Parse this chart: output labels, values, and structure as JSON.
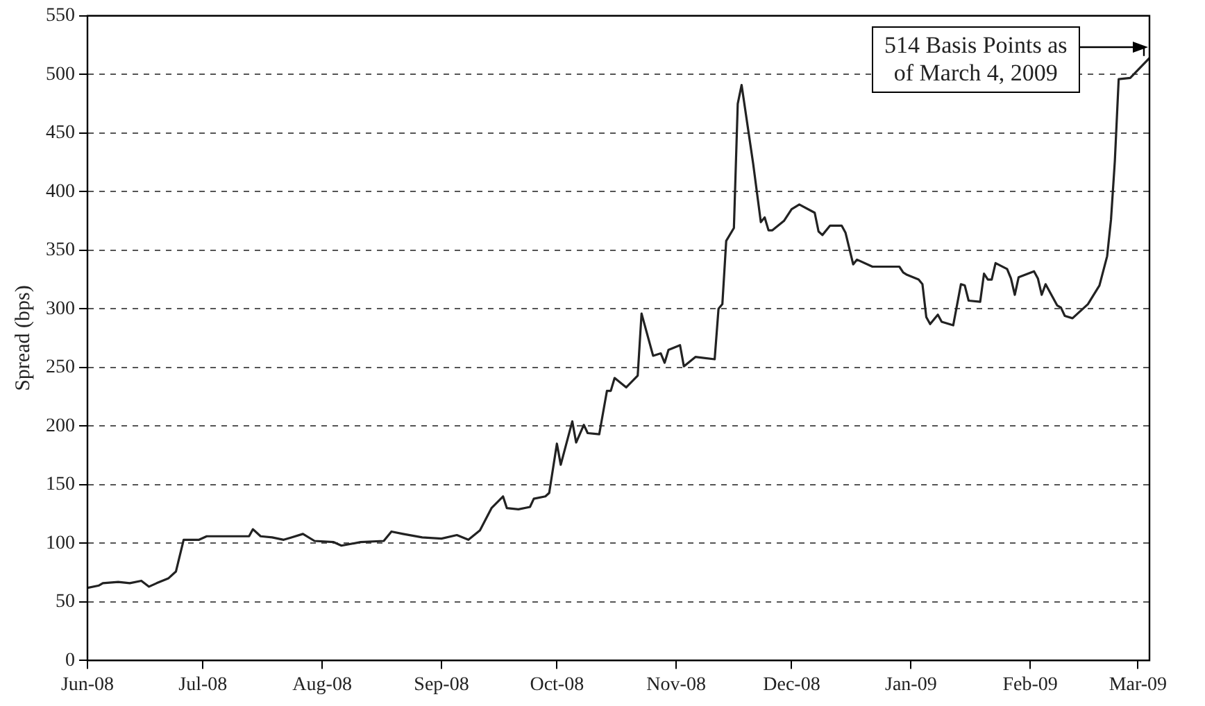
{
  "chart_data": {
    "type": "line",
    "ylabel": "Spread (bps)",
    "x": [
      "2008-06-01",
      "2008-06-04",
      "2008-06-05",
      "2008-06-09",
      "2008-06-12",
      "2008-06-15",
      "2008-06-17",
      "2008-06-19",
      "2008-06-22",
      "2008-06-24",
      "2008-06-26",
      "2008-06-30",
      "2008-07-02",
      "2008-07-06",
      "2008-07-13",
      "2008-07-14",
      "2008-07-16",
      "2008-07-19",
      "2008-07-22",
      "2008-07-24",
      "2008-07-27",
      "2008-07-30",
      "2008-08-04",
      "2008-08-06",
      "2008-08-11",
      "2008-08-17",
      "2008-08-19",
      "2008-08-22",
      "2008-08-27",
      "2008-09-01",
      "2008-09-05",
      "2008-09-08",
      "2008-09-11",
      "2008-09-14",
      "2008-09-17",
      "2008-09-18",
      "2008-09-21",
      "2008-09-24",
      "2008-09-25",
      "2008-09-28",
      "2008-09-29",
      "2008-10-01",
      "2008-10-02",
      "2008-10-05",
      "2008-10-06",
      "2008-10-08",
      "2008-10-09",
      "2008-10-12",
      "2008-10-14",
      "2008-10-15",
      "2008-10-16",
      "2008-10-19",
      "2008-10-22",
      "2008-10-23",
      "2008-10-26",
      "2008-10-28",
      "2008-10-29",
      "2008-10-30",
      "2008-11-02",
      "2008-11-03",
      "2008-11-06",
      "2008-11-11",
      "2008-11-12",
      "2008-11-13",
      "2008-11-14",
      "2008-11-16",
      "2008-11-17",
      "2008-11-18",
      "2008-11-21",
      "2008-11-23",
      "2008-11-24",
      "2008-11-25",
      "2008-11-26",
      "2008-11-29",
      "2008-12-01",
      "2008-12-03",
      "2008-12-07",
      "2008-12-08",
      "2008-12-09",
      "2008-12-11",
      "2008-12-14",
      "2008-12-15",
      "2008-12-17",
      "2008-12-18",
      "2008-12-22",
      "2008-12-29",
      "2008-12-30",
      "2008-12-31",
      "2009-01-03",
      "2009-01-04",
      "2009-01-05",
      "2009-01-06",
      "2009-01-08",
      "2009-01-09",
      "2009-01-12",
      "2009-01-14",
      "2009-01-15",
      "2009-01-16",
      "2009-01-19",
      "2009-01-20",
      "2009-01-21",
      "2009-01-22",
      "2009-01-23",
      "2009-01-26",
      "2009-01-27",
      "2009-01-28",
      "2009-01-29",
      "2009-02-02",
      "2009-02-03",
      "2009-02-04",
      "2009-02-05",
      "2009-02-08",
      "2009-02-09",
      "2009-02-10",
      "2009-02-12",
      "2009-02-16",
      "2009-02-19",
      "2009-02-21",
      "2009-02-22",
      "2009-02-23",
      "2009-02-24",
      "2009-02-27",
      "2009-03-04"
    ],
    "series": [
      {
        "color": "#222222",
        "values": [
          62,
          64,
          66,
          67,
          66,
          68,
          63,
          66,
          70,
          76,
          103,
          103,
          106,
          106,
          106,
          112,
          106,
          105,
          103,
          105,
          108,
          102,
          101,
          98,
          101,
          102,
          110,
          108,
          105,
          104,
          107,
          103,
          111,
          130,
          140,
          130,
          129,
          131,
          138,
          140,
          143,
          185,
          167,
          204,
          186,
          201,
          194,
          193,
          230,
          230,
          241,
          233,
          243,
          296,
          260,
          262,
          254,
          265,
          269,
          251,
          259,
          257,
          300,
          304,
          358,
          369,
          475,
          491,
          424,
          374,
          378,
          367,
          367,
          375,
          385,
          389,
          382,
          366,
          363,
          371,
          371,
          365,
          338,
          342,
          336,
          336,
          331,
          329,
          325,
          321,
          293,
          287,
          295,
          289,
          286,
          321,
          320,
          307,
          306,
          330,
          325,
          325,
          339,
          334,
          326,
          312,
          327,
          332,
          326,
          312,
          321,
          303,
          301,
          294,
          292,
          304,
          320,
          345,
          376,
          426,
          496,
          497,
          514
        ]
      }
    ],
    "xlim": [
      "2008-06-01",
      "2009-03-04"
    ],
    "xticks": [
      {
        "value": "2008-06-01",
        "label": "Jun-08"
      },
      {
        "value": "2008-07-01",
        "label": "Jul-08"
      },
      {
        "value": "2008-08-01",
        "label": "Aug-08"
      },
      {
        "value": "2008-09-01",
        "label": "Sep-08"
      },
      {
        "value": "2008-10-01",
        "label": "Oct-08"
      },
      {
        "value": "2008-11-01",
        "label": "Nov-08"
      },
      {
        "value": "2008-12-01",
        "label": "Dec-08"
      },
      {
        "value": "2009-01-01",
        "label": "Jan-09"
      },
      {
        "value": "2009-02-01",
        "label": "Feb-09"
      },
      {
        "value": "2009-03-01",
        "label": "Mar-09"
      }
    ],
    "ylim": [
      0,
      550
    ],
    "yticks": [
      0,
      50,
      100,
      150,
      200,
      250,
      300,
      350,
      400,
      450,
      500,
      550
    ],
    "grid": "y",
    "legend": false,
    "marker": "none",
    "line_style": "solid",
    "annotations": [
      {
        "text": "514 Basis Points as\nof March 4, 2009",
        "x": "2009-03-04",
        "y": 514
      }
    ]
  }
}
